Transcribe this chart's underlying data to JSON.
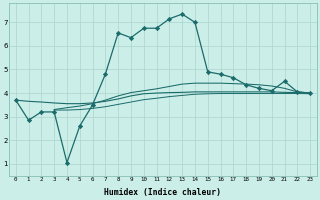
{
  "bg_color": "#cceee8",
  "grid_color": "#aad4cc",
  "line_color": "#1a6b6b",
  "xlabel": "Humidex (Indice chaleur)",
  "xlim": [
    -0.5,
    23.5
  ],
  "ylim": [
    0.5,
    7.8
  ],
  "xticks": [
    0,
    1,
    2,
    3,
    4,
    5,
    6,
    7,
    8,
    9,
    10,
    11,
    12,
    13,
    14,
    15,
    16,
    17,
    18,
    19,
    20,
    21,
    22,
    23
  ],
  "yticks": [
    1,
    2,
    3,
    4,
    5,
    6,
    7
  ],
  "series": [
    {
      "x": [
        0,
        1,
        2,
        3,
        4,
        5,
        6,
        7,
        8,
        9,
        10,
        11,
        12,
        13,
        14,
        15,
        16,
        17,
        18,
        19,
        20,
        21,
        22,
        23
      ],
      "y": [
        3.7,
        2.85,
        3.2,
        3.2,
        1.05,
        2.6,
        3.5,
        4.8,
        6.55,
        6.35,
        6.75,
        6.75,
        7.15,
        7.35,
        7.0,
        4.9,
        4.8,
        4.65,
        4.35,
        4.2,
        4.1,
        4.5,
        4.05,
        4.0
      ],
      "marker": "D",
      "markersize": 2.2,
      "linewidth": 0.9
    },
    {
      "x": [
        0,
        1,
        2,
        3,
        4,
        5,
        6,
        7,
        8,
        9,
        10,
        11,
        12,
        13,
        14,
        15,
        16,
        17,
        18,
        19,
        20,
        21,
        22,
        23
      ],
      "y": [
        3.7,
        3.65,
        3.62,
        3.58,
        3.55,
        3.55,
        3.58,
        3.65,
        3.75,
        3.88,
        3.97,
        4.0,
        4.02,
        4.03,
        4.05,
        4.05,
        4.05,
        4.05,
        4.05,
        4.05,
        4.05,
        4.03,
        4.02,
        4.0
      ],
      "marker": null,
      "linewidth": 0.8
    },
    {
      "x": [
        3,
        4,
        5,
        6,
        7,
        8,
        9,
        10,
        11,
        12,
        13,
        14,
        15,
        16,
        17,
        18,
        19,
        20,
        21,
        22,
        23
      ],
      "y": [
        3.3,
        3.38,
        3.45,
        3.55,
        3.7,
        3.88,
        4.02,
        4.1,
        4.18,
        4.28,
        4.38,
        4.42,
        4.42,
        4.42,
        4.4,
        4.38,
        4.35,
        4.3,
        4.2,
        4.05,
        4.0
      ],
      "marker": null,
      "linewidth": 0.75
    },
    {
      "x": [
        3,
        4,
        5,
        6,
        7,
        8,
        9,
        10,
        11,
        12,
        13,
        14,
        15,
        16,
        17,
        18,
        19,
        20,
        21,
        22,
        23
      ],
      "y": [
        3.28,
        3.28,
        3.3,
        3.35,
        3.42,
        3.52,
        3.62,
        3.72,
        3.78,
        3.85,
        3.9,
        3.95,
        3.97,
        3.98,
        3.98,
        3.98,
        3.98,
        3.98,
        3.98,
        3.98,
        3.97
      ],
      "marker": null,
      "linewidth": 0.7
    }
  ]
}
